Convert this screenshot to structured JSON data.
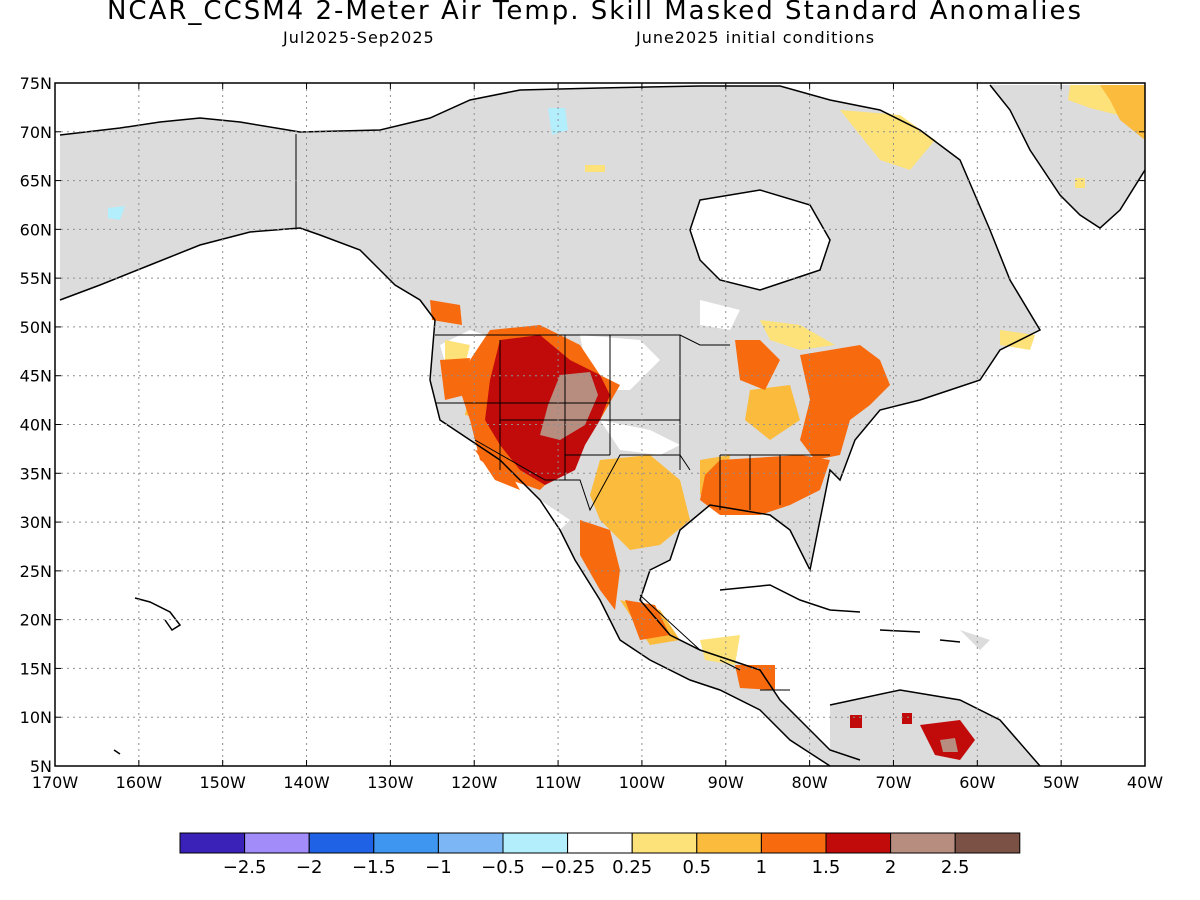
{
  "title": "NCAR_CCSM4 2-Meter Air Temp. Skill Masked Standard Anomalies",
  "subtitle_left": "Jul2025-Sep2025",
  "subtitle_right": "June2025 initial conditions",
  "map": {
    "lon_range": [
      -170,
      -40
    ],
    "lat_range": [
      5,
      75
    ],
    "lat_labels": [
      "75N",
      "70N",
      "65N",
      "60N",
      "55N",
      "50N",
      "45N",
      "40N",
      "35N",
      "30N",
      "25N",
      "20N",
      "15N",
      "10N",
      "5N"
    ],
    "lon_labels": [
      "170W",
      "160W",
      "150W",
      "140W",
      "130W",
      "120W",
      "110W",
      "100W",
      "90W",
      "80W",
      "70W",
      "60W",
      "50W",
      "40W"
    ],
    "grid": true
  },
  "colorbar": {
    "colors": [
      "#3a22b8",
      "#a18cf9",
      "#1f62e6",
      "#3f96f0",
      "#7cb6f5",
      "#b3eefc",
      "#ffffff",
      "#fde27a",
      "#fbbb3d",
      "#f86a0e",
      "#c10a0a",
      "#b78d7f",
      "#7b5045"
    ],
    "labels": [
      "-2.5",
      "-2",
      "-1.5",
      "-1",
      "-0.5",
      "-0.25",
      "0.25",
      "0.5",
      "1",
      "1.5",
      "2",
      "2.5"
    ]
  }
}
